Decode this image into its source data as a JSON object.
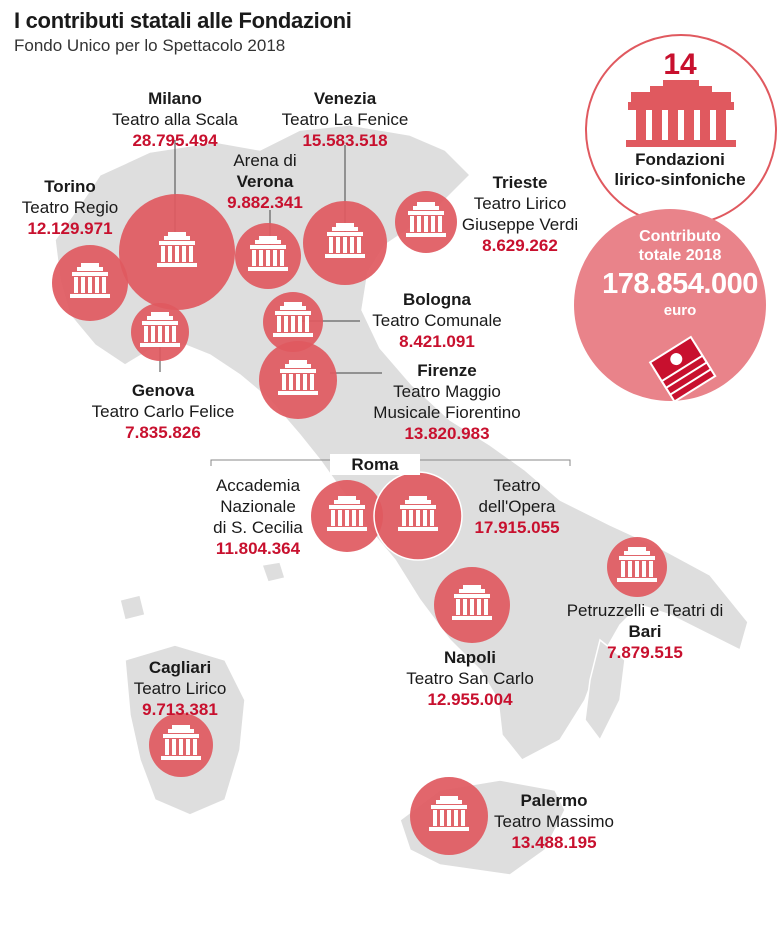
{
  "header": {
    "title": "I contributi statali alle Fondazioni",
    "subtitle": "Fondo Unico per lo Spettacolo 2018"
  },
  "summary": {
    "count": "14",
    "count_label_1": "Fondazioni",
    "count_label_2": "lirico-sinfoniche",
    "total_label_1": "Contributo",
    "total_label_2": "totale 2018",
    "total_value": "178.854.000",
    "total_unit": "euro"
  },
  "foundations": {
    "milano": {
      "city": "Milano",
      "theatre": "Teatro alla Scala",
      "value": "28.795.494"
    },
    "venezia": {
      "city": "Venezia",
      "theatre": "Teatro La Fenice",
      "value": "15.583.518"
    },
    "verona": {
      "prefix": "Arena di",
      "city": "Verona",
      "value": "9.882.341"
    },
    "torino": {
      "city": "Torino",
      "theatre": "Teatro Regio",
      "value": "12.129.971"
    },
    "trieste": {
      "city": "Trieste",
      "theatre_1": "Teatro Lirico",
      "theatre_2": "Giuseppe Verdi",
      "value": "8.629.262"
    },
    "bologna": {
      "city": "Bologna",
      "theatre": "Teatro Comunale",
      "value": "8.421.091"
    },
    "genova": {
      "city": "Genova",
      "theatre": "Teatro Carlo Felice",
      "value": "7.835.826"
    },
    "firenze": {
      "city": "Firenze",
      "theatre_1": "Teatro Maggio",
      "theatre_2": "Musicale Fiorentino",
      "value": "13.820.983"
    },
    "roma": {
      "city": "Roma",
      "cecilia": {
        "line_1": "Accademia",
        "line_2": "Nazionale",
        "line_3": "di S. Cecilia",
        "value": "11.804.364"
      },
      "opera": {
        "line_1": "Teatro",
        "line_2": "dell'Opera",
        "value": "17.915.055"
      }
    },
    "bari": {
      "theatre": "Petruzzelli e Teatri di",
      "city": "Bari",
      "value": "7.879.515"
    },
    "napoli": {
      "city": "Napoli",
      "theatre": "Teatro San Carlo",
      "value": "12.955.004"
    },
    "cagliari": {
      "city": "Cagliari",
      "theatre": "Teatro Lirico",
      "value": "9.713.381"
    },
    "palermo": {
      "city": "Palermo",
      "theatre": "Teatro Massimo",
      "value": "13.488.195"
    }
  },
  "colors": {
    "land": "#dedede",
    "bubble": "#e0595f",
    "accent": "#c8102e",
    "total_circle": "#e9838a"
  },
  "icons": {
    "theatre": "theatre-building-icon",
    "money": "banknotes-icon"
  }
}
